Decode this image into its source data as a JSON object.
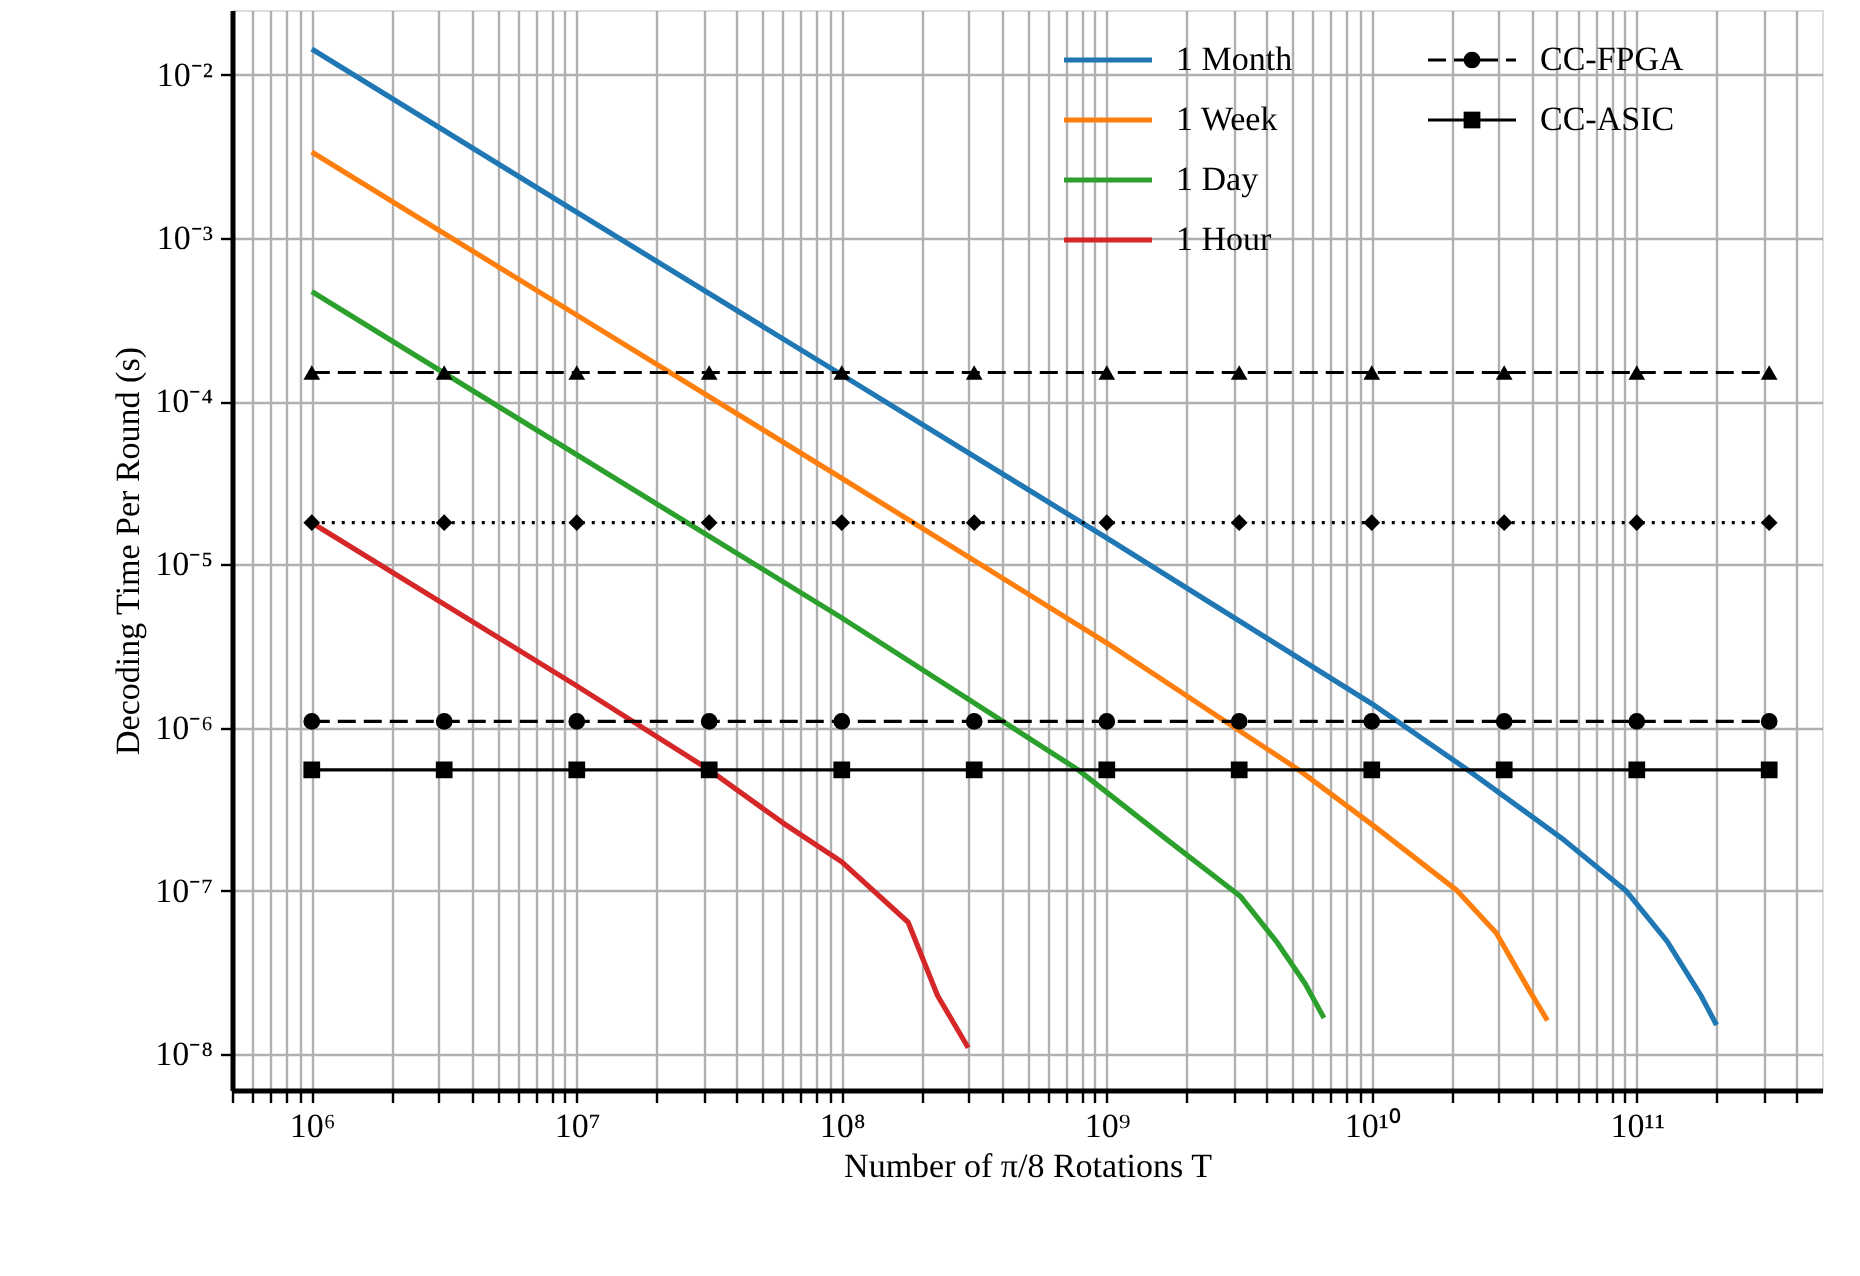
{
  "chart_data": {
    "type": "line",
    "xlabel": "Number of π/8 Rotations T",
    "ylabel": "Decoding Time Per Round (s)",
    "log": "xy",
    "grid": true,
    "legend": "top right",
    "xlim": [
      500000.0,
      500000000000.0
    ],
    "ylim": [
      6e-09,
      0.025
    ],
    "xticks": [
      {
        "value": 500000.0,
        "label": null
      },
      {
        "value": 600000.0,
        "label": null
      },
      {
        "value": 700000.0,
        "label": null
      },
      {
        "value": 800000.0,
        "label": null
      },
      {
        "value": 900000.0,
        "label": null
      },
      {
        "value": 1000000.0,
        "label": "10⁶"
      },
      {
        "value": 2000000.0,
        "label": null
      },
      {
        "value": 3000000.0,
        "label": null
      },
      {
        "value": 4000000.0,
        "label": null
      },
      {
        "value": 5000000.0,
        "label": null
      },
      {
        "value": 6000000.0,
        "label": null
      },
      {
        "value": 7000000.0,
        "label": null
      },
      {
        "value": 8000000.0,
        "label": null
      },
      {
        "value": 9000000.0,
        "label": null
      },
      {
        "value": 10000000.0,
        "label": "10⁷"
      },
      {
        "value": 20000000.0,
        "label": null
      },
      {
        "value": 30000000.0,
        "label": null
      },
      {
        "value": 40000000.0,
        "label": null
      },
      {
        "value": 50000000.0,
        "label": null
      },
      {
        "value": 60000000.0,
        "label": null
      },
      {
        "value": 70000000.0,
        "label": null
      },
      {
        "value": 80000000.0,
        "label": null
      },
      {
        "value": 90000000.0,
        "label": null
      },
      {
        "value": 100000000.0,
        "label": "10⁸"
      },
      {
        "value": 200000000.0,
        "label": null
      },
      {
        "value": 300000000.0,
        "label": null
      },
      {
        "value": 400000000.0,
        "label": null
      },
      {
        "value": 500000000.0,
        "label": null
      },
      {
        "value": 600000000.0,
        "label": null
      },
      {
        "value": 700000000.0,
        "label": null
      },
      {
        "value": 800000000.0,
        "label": null
      },
      {
        "value": 900000000.0,
        "label": null
      },
      {
        "value": 1000000000.0,
        "label": "10⁹"
      },
      {
        "value": 2000000000.0,
        "label": null
      },
      {
        "value": 3000000000.0,
        "label": null
      },
      {
        "value": 4000000000.0,
        "label": null
      },
      {
        "value": 5000000000.0,
        "label": null
      },
      {
        "value": 6000000000.0,
        "label": null
      },
      {
        "value": 7000000000.0,
        "label": null
      },
      {
        "value": 8000000000.0,
        "label": null
      },
      {
        "value": 9000000000.0,
        "label": null
      },
      {
        "value": 10000000000.0,
        "label": "10¹⁰"
      },
      {
        "value": 20000000000.0,
        "label": null
      },
      {
        "value": 30000000000.0,
        "label": null
      },
      {
        "value": 40000000000.0,
        "label": null
      },
      {
        "value": 50000000000.0,
        "label": null
      },
      {
        "value": 60000000000.0,
        "label": null
      },
      {
        "value": 70000000000.0,
        "label": null
      },
      {
        "value": 80000000000.0,
        "label": null
      },
      {
        "value": 90000000000.0,
        "label": null
      },
      {
        "value": 100000000000.0,
        "label": "10¹¹"
      },
      {
        "value": 200000000000.0,
        "label": null
      },
      {
        "value": 300000000000.0,
        "label": null
      },
      {
        "value": 400000000000.0,
        "label": null
      }
    ],
    "yticks": [
      {
        "value": 1e-08,
        "label": "10⁻⁸"
      },
      {
        "value": 1e-07,
        "label": "10⁻⁷"
      },
      {
        "value": 1e-06,
        "label": "10⁻⁶"
      },
      {
        "value": 1e-05,
        "label": "10⁻⁵"
      },
      {
        "value": 0.0001,
        "label": "10⁻⁴"
      },
      {
        "value": 0.001,
        "label": "10⁻³"
      },
      {
        "value": 0.01,
        "label": "10⁻²"
      }
    ],
    "series": [
      {
        "name": "1 Month",
        "color": "#1f77b4",
        "marker": "none",
        "line_style": "solid",
        "x": [
          1000000.0,
          10000000.0,
          100000000.0,
          1000000000.0,
          10000000000.0,
          23000000000.0,
          52000000000.0,
          91000000000.0,
          130000000000.0,
          174000000000.0,
          200000000000.0
        ],
        "values": [
          0.0144,
          0.00144,
          0.000145,
          1.45e-05,
          1.4e-06,
          5.5e-07,
          2.1e-07,
          1e-07,
          4.9e-08,
          2.3e-08,
          1.5e-08
        ]
      },
      {
        "name": "1 Week",
        "color": "#ff7f0e",
        "marker": "none",
        "line_style": "solid",
        "x": [
          1000000.0,
          10000000.0,
          100000000.0,
          1000000000.0,
          2800000000.0,
          5300000000.0,
          10500000000.0,
          21000000000.0,
          29500000000.0,
          39000000000.0,
          46000000000.0
        ],
        "values": [
          0.00337,
          0.000337,
          3.37e-05,
          3.3e-06,
          1.09e-06,
          5.5e-07,
          2.4e-07,
          1e-07,
          5.5e-08,
          2.5e-08,
          1.6e-08
        ]
      },
      {
        "name": "1 Day",
        "color": "#2ca02c",
        "marker": "none",
        "line_style": "solid",
        "x": [
          1000000.0,
          10000000.0,
          100000000.0,
          780000000.0,
          1660000000.0,
          3200000000.0,
          4400000000.0,
          5600000000.0,
          6600000000.0
        ],
        "values": [
          0.00047,
          4.7e-05,
          4.7e-06,
          5.5e-07,
          2.1e-07,
          9.2e-08,
          4.8e-08,
          2.7e-08,
          1.66e-08
        ]
      },
      {
        "name": "1 Hour",
        "color": "#d62728",
        "marker": "none",
        "line_style": "solid",
        "x": [
          1000000.0,
          10000000.0,
          31600000.0,
          60000000.0,
          100000000.0,
          178000000.0,
          230000000.0,
          300000000.0
        ],
        "values": [
          1.8e-05,
          1.8e-06,
          5.5e-07,
          2.6e-07,
          1.5e-07,
          6.4e-08,
          2.27e-08,
          1.09e-08
        ]
      },
      {
        "color": "#000000",
        "marker": "triangle",
        "line_style": "dashed",
        "x": [
          1000000.0,
          3160000.0,
          10000000.0,
          31600000.0,
          100000000.0,
          316000000.0,
          1000000000.0,
          3160000000.0,
          10000000000.0,
          31600000000.0,
          100000000000.0,
          316000000000.0
        ],
        "values": [
          0.00015,
          0.00015,
          0.00015,
          0.00015,
          0.00015,
          0.00015,
          0.00015,
          0.00015,
          0.00015,
          0.00015,
          0.00015,
          0.00015
        ]
      },
      {
        "color": "#000000",
        "marker": "diamond",
        "line_style": "dotted",
        "x": [
          1000000.0,
          3160000.0,
          10000000.0,
          31600000.0,
          100000000.0,
          316000000.0,
          1000000000.0,
          3160000000.0,
          10000000000.0,
          31600000000.0,
          100000000000.0,
          316000000000.0
        ],
        "values": [
          1.8e-05,
          1.8e-05,
          1.8e-05,
          1.8e-05,
          1.8e-05,
          1.8e-05,
          1.8e-05,
          1.8e-05,
          1.8e-05,
          1.8e-05,
          1.8e-05,
          1.8e-05
        ]
      },
      {
        "name": "CC-FPGA",
        "color": "#000000",
        "marker": "circle",
        "line_style": "dashed",
        "x": [
          1000000.0,
          3160000.0,
          10000000.0,
          31600000.0,
          100000000.0,
          316000000.0,
          1000000000.0,
          3160000000.0,
          10000000000.0,
          31600000000.0,
          100000000000.0,
          316000000000.0
        ],
        "values": [
          1.09e-06,
          1.09e-06,
          1.09e-06,
          1.09e-06,
          1.09e-06,
          1.09e-06,
          1.09e-06,
          1.09e-06,
          1.09e-06,
          1.09e-06,
          1.09e-06,
          1.09e-06
        ]
      },
      {
        "name": "CC-ASIC",
        "color": "#000000",
        "marker": "square",
        "line_style": "solid",
        "x": [
          1000000.0,
          3160000.0,
          10000000.0,
          31600000.0,
          100000000.0,
          316000000.0,
          1000000000.0,
          3160000000.0,
          10000000000.0,
          31600000000.0,
          100000000000.0,
          316000000000.0
        ],
        "values": [
          5.5e-07,
          5.5e-07,
          5.5e-07,
          5.5e-07,
          5.5e-07,
          5.5e-07,
          5.5e-07,
          5.5e-07,
          5.5e-07,
          5.5e-07,
          5.5e-07,
          5.5e-07
        ]
      }
    ]
  }
}
